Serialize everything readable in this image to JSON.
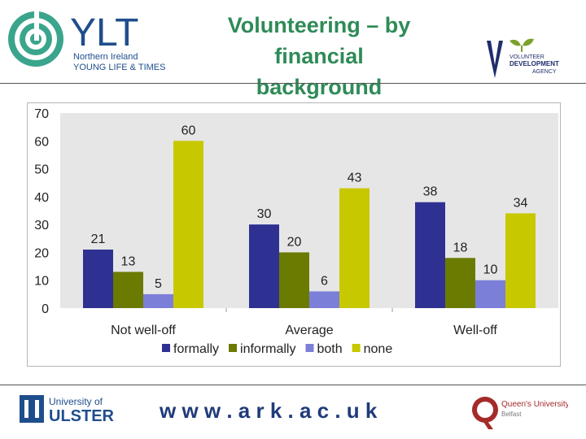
{
  "header": {
    "title_line1": "Volunteering – by financial",
    "title_line2": "background",
    "ylt_logo": {
      "name": "YLT",
      "subtitle_line1": "Northern Ireland",
      "subtitle_line2": "YOUNG LIFE & TIMES",
      "icon": "swirl-logo-icon"
    },
    "vda_logo": {
      "line1": "VOLUNTEER",
      "line2": "DEVELOPMENT",
      "line3": "AGENCY",
      "icon": "sprout-logo-icon"
    }
  },
  "footer": {
    "ulster": {
      "line1": "University of",
      "line2": "ULSTER"
    },
    "url": "w w w . a r k . a c . u k",
    "qub": {
      "line1": "Queen's University",
      "line2": "Belfast"
    }
  },
  "colors": {
    "title": "#2e8b57",
    "formally": "#2e3192",
    "informally": "#6b7a00",
    "both": "#7b7fd8",
    "none": "#c8c800",
    "plot_bg": "#e6e6e6"
  },
  "chart_data": {
    "type": "bar",
    "categories": [
      "Not well-off",
      "Average",
      "Well-off"
    ],
    "series": [
      {
        "name": "formally",
        "values": [
          21,
          30,
          38
        ]
      },
      {
        "name": "informally",
        "values": [
          13,
          20,
          18
        ]
      },
      {
        "name": "both",
        "values": [
          5,
          6,
          10
        ]
      },
      {
        "name": "none",
        "values": [
          60,
          43,
          34
        ]
      }
    ],
    "ylim": [
      0,
      70
    ],
    "yticks": [
      0,
      10,
      20,
      30,
      40,
      50,
      60,
      70
    ],
    "grid": false,
    "legend": "bottom",
    "data_labels": true
  }
}
